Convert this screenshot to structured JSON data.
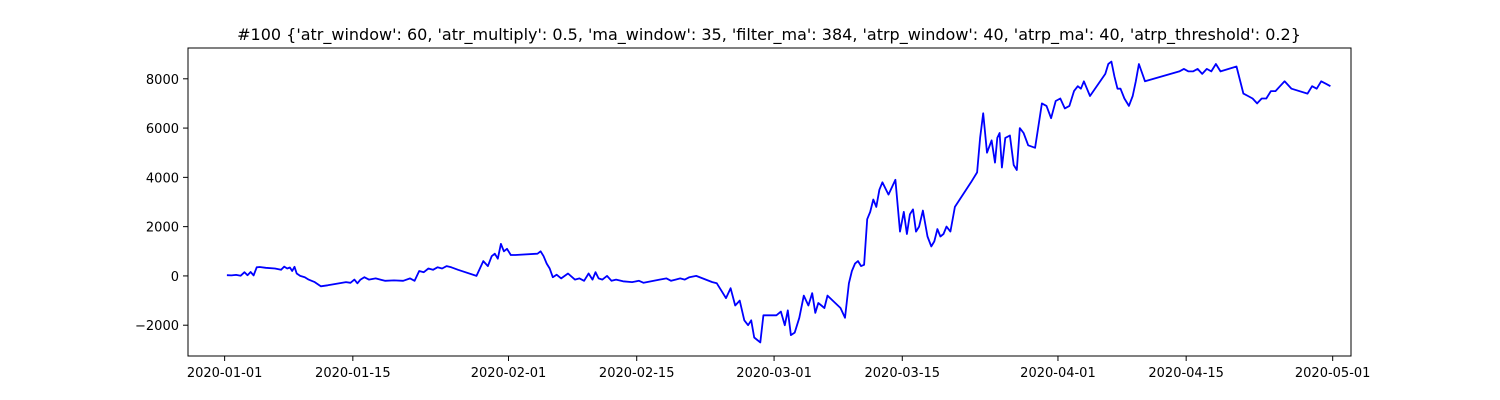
{
  "chart_data": {
    "type": "line",
    "title": "#100 {'atr_window': 60, 'atr_multiply': 0.5, 'ma_window': 35, 'filter_ma': 384, 'atrp_window': 40, 'atrp_ma': 40, 'atrp_threshold': 0.2}",
    "xlabel": "",
    "ylabel": "",
    "xlim": [
      "2019-12-28",
      "2020-05-03"
    ],
    "ylim": [
      -3250,
      9250
    ],
    "x_ticks": [
      "2020-01-01",
      "2020-01-15",
      "2020-02-01",
      "2020-02-15",
      "2020-03-01",
      "2020-03-15",
      "2020-04-01",
      "2020-04-15",
      "2020-05-01"
    ],
    "y_ticks": [
      -2000,
      0,
      2000,
      4000,
      6000,
      8000
    ],
    "y_tick_labels": [
      "−2000",
      "0",
      "2000",
      "4000",
      "6000",
      "8000"
    ],
    "grid": false,
    "series": [
      {
        "color": "#0000ff",
        "x": [
          "2020-01-01",
          "2020-01-01",
          "2020-01-02",
          "2020-01-02",
          "2020-01-03",
          "2020-01-03",
          "2020-01-03",
          "2020-01-04",
          "2020-01-04",
          "2020-01-04",
          "2020-01-05",
          "2020-01-06",
          "2020-01-07",
          "2020-01-07",
          "2020-01-07",
          "2020-01-08",
          "2020-01-08",
          "2020-01-08",
          "2020-01-08",
          "2020-01-09",
          "2020-01-09",
          "2020-01-10",
          "2020-01-10",
          "2020-01-10",
          "2020-01-11",
          "2020-01-12",
          "2020-01-12",
          "2020-01-14",
          "2020-01-14",
          "2020-01-15",
          "2020-01-15",
          "2020-01-15",
          "2020-01-16",
          "2020-01-16",
          "2020-01-17",
          "2020-01-18",
          "2020-01-19",
          "2020-01-20",
          "2020-01-21",
          "2020-01-21",
          "2020-01-22",
          "2020-01-22",
          "2020-01-23",
          "2020-01-23",
          "2020-01-24",
          "2020-01-24",
          "2020-01-25",
          "2020-01-25",
          "2020-01-26",
          "2020-01-28",
          "2020-01-29",
          "2020-01-29",
          "2020-01-30",
          "2020-01-30",
          "2020-01-30",
          "2020-01-31",
          "2020-01-31",
          "2020-01-31",
          "2020-02-01",
          "2020-02-01",
          "2020-02-04",
          "2020-02-04",
          "2020-02-04",
          "2020-02-05",
          "2020-02-05",
          "2020-02-05",
          "2020-02-06",
          "2020-02-06",
          "2020-02-07",
          "2020-02-08",
          "2020-02-08",
          "2020-02-09",
          "2020-02-09",
          "2020-02-10",
          "2020-02-10",
          "2020-02-10",
          "2020-02-11",
          "2020-02-11",
          "2020-02-12",
          "2020-02-12",
          "2020-02-13",
          "2020-02-14",
          "2020-02-15",
          "2020-02-15",
          "2020-02-17",
          "2020-02-18",
          "2020-02-18",
          "2020-02-19",
          "2020-02-19",
          "2020-02-20",
          "2020-02-20",
          "2020-02-21",
          "2020-02-23",
          "2020-02-23",
          "2020-02-24",
          "2020-02-24",
          "2020-02-25",
          "2020-02-25",
          "2020-02-26",
          "2020-02-26",
          "2020-02-27",
          "2020-02-27",
          "2020-02-27",
          "2020-02-28",
          "2020-02-28",
          "2020-02-28",
          "2020-03-01",
          "2020-03-01",
          "2020-03-02",
          "2020-03-02",
          "2020-03-02",
          "2020-03-03",
          "2020-03-03",
          "2020-03-04",
          "2020-03-04",
          "2020-03-05",
          "2020-03-05",
          "2020-03-05",
          "2020-03-06",
          "2020-03-06",
          "2020-03-06",
          "2020-03-08",
          "2020-03-08",
          "2020-03-09",
          "2020-03-09",
          "2020-03-09",
          "2020-03-10",
          "2020-03-10",
          "2020-03-10",
          "2020-03-11",
          "2020-03-11",
          "2020-03-11",
          "2020-03-12",
          "2020-03-12",
          "2020-03-12",
          "2020-03-13",
          "2020-03-14",
          "2020-03-14",
          "2020-03-15",
          "2020-03-15",
          "2020-03-15",
          "2020-03-16",
          "2020-03-16",
          "2020-03-16",
          "2020-03-17",
          "2020-03-17",
          "2020-03-18",
          "2020-03-18",
          "2020-03-18",
          "2020-03-19",
          "2020-03-19",
          "2020-03-19",
          "2020-03-20",
          "2020-03-20",
          "2020-03-22",
          "2020-03-23",
          "2020-03-23",
          "2020-03-23",
          "2020-03-24",
          "2020-03-24",
          "2020-03-25",
          "2020-03-25",
          "2020-03-25",
          "2020-03-25",
          "2020-03-26",
          "2020-03-26",
          "2020-03-27",
          "2020-03-27",
          "2020-03-27",
          "2020-03-28",
          "2020-03-28",
          "2020-03-29",
          "2020-03-30",
          "2020-03-30",
          "2020-03-31",
          "2020-03-31",
          "2020-04-01",
          "2020-04-01",
          "2020-04-02",
          "2020-04-02",
          "2020-04-03",
          "2020-04-03",
          "2020-04-03",
          "2020-04-04",
          "2020-04-06",
          "2020-04-06",
          "2020-04-06",
          "2020-04-07",
          "2020-04-07",
          "2020-04-07",
          "2020-04-08",
          "2020-04-08",
          "2020-04-09",
          "2020-04-09",
          "2020-04-09",
          "2020-04-10",
          "2020-04-14",
          "2020-04-14",
          "2020-04-15",
          "2020-04-15",
          "2020-04-16",
          "2020-04-16",
          "2020-04-17",
          "2020-04-17",
          "2020-04-18",
          "2020-04-18",
          "2020-04-20",
          "2020-04-21",
          "2020-04-21",
          "2020-04-22",
          "2020-04-22",
          "2020-04-23",
          "2020-04-23",
          "2020-04-24",
          "2020-04-24",
          "2020-04-25",
          "2020-04-25",
          "2020-04-26",
          "2020-04-28",
          "2020-04-28",
          "2020-04-29",
          "2020-04-29",
          "2020-04-30",
          "2020-04-30"
        ],
        "y": [
          30,
          20,
          40,
          10,
          150,
          30,
          160,
          20,
          350,
          360,
          330,
          300,
          250,
          380,
          300,
          340,
          200,
          370,
          100,
          0,
          -50,
          -150,
          -200,
          -250,
          -420,
          -380,
          -350,
          -250,
          -280,
          -150,
          -300,
          -150,
          -50,
          -150,
          -100,
          -200,
          -180,
          -200,
          -100,
          -200,
          200,
          150,
          300,
          250,
          350,
          300,
          400,
          350,
          250,
          0,
          600,
          400,
          800,
          900,
          700,
          1300,
          1000,
          1100,
          850,
          850,
          900,
          1000,
          800,
          500,
          300,
          -50,
          50,
          -100,
          100,
          -150,
          -100,
          -200,
          100,
          -150,
          150,
          -100,
          -150,
          0,
          -200,
          -150,
          -220,
          -250,
          -200,
          -280,
          -150,
          -100,
          -200,
          -150,
          -100,
          -150,
          -50,
          0,
          -250,
          -300,
          -600,
          -900,
          -500,
          -1200,
          -1000,
          -1800,
          -2000,
          -1800,
          -2500,
          -2600,
          -2700,
          -1600,
          -1600,
          -1450,
          -2000,
          -1400,
          -2400,
          -2300,
          -1700,
          -800,
          -1200,
          -700,
          -1500,
          -1100,
          -1200,
          -1300,
          -800,
          -1300,
          -1700,
          -300,
          200,
          500,
          600,
          400,
          450,
          2300,
          2600,
          3100,
          2800,
          3500,
          3800,
          3300,
          3900,
          1800,
          2600,
          1700,
          2500,
          2700,
          1800,
          2000,
          2650,
          1600,
          1200,
          1400,
          1900,
          1600,
          1700,
          2000,
          1800,
          2800,
          3800,
          4200,
          5600,
          6600,
          5000,
          5500,
          4600,
          5600,
          5800,
          4400,
          5600,
          5700,
          4500,
          4300,
          6000,
          5800,
          5300,
          5200,
          7000,
          6900,
          6400,
          7100,
          7200,
          6800,
          6900,
          7500,
          7700,
          7600,
          7900,
          7300,
          8200,
          8600,
          8700,
          8100,
          7600,
          7600,
          7200,
          6900,
          7300,
          7900,
          8600,
          7900,
          8300,
          8400,
          8300,
          8300,
          8400,
          8200,
          8400,
          8300,
          8600,
          8300,
          8500,
          7400,
          7300,
          7200,
          7000,
          7200,
          7200,
          7500,
          7500,
          7700,
          7900,
          7600,
          7400,
          7700,
          7600,
          7900,
          7800,
          7700
        ]
      }
    ]
  }
}
